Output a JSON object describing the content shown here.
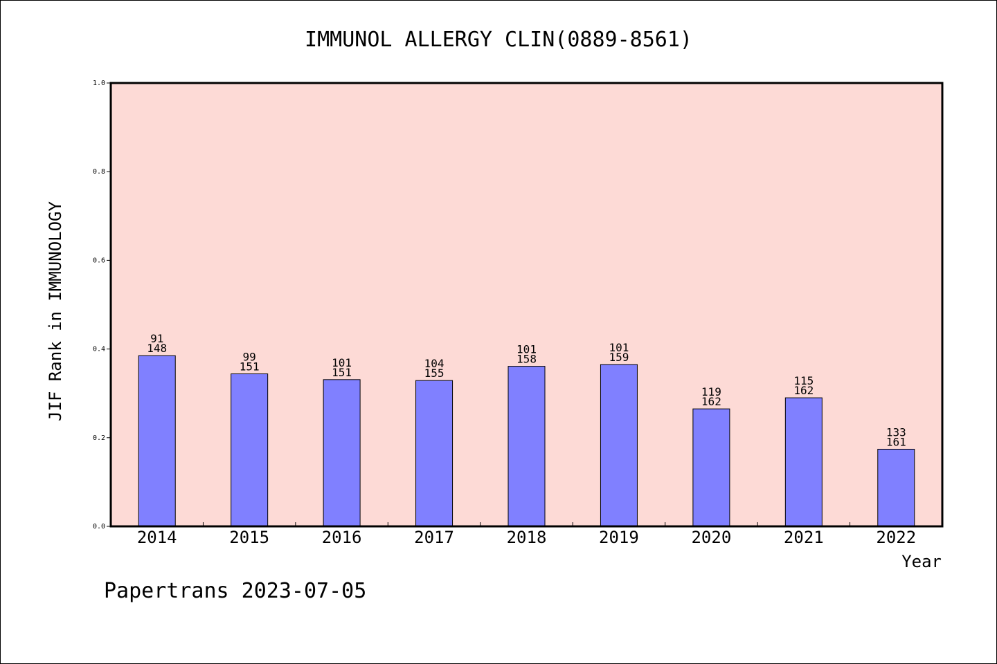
{
  "chart_data": {
    "type": "bar",
    "title": "IMMUNOL ALLERGY CLIN(0889-8561)",
    "xlabel": "Year",
    "ylabel": "JIF Rank in IMMUNOLOGY",
    "ylim": [
      0,
      1.0
    ],
    "yticks": [
      "0.0",
      "0.2",
      "0.4",
      "0.6",
      "0.8",
      "1.0"
    ],
    "categories": [
      "2014",
      "2015",
      "2016",
      "2017",
      "2018",
      "2019",
      "2020",
      "2021",
      "2022"
    ],
    "values": [
      0.385,
      0.344,
      0.331,
      0.329,
      0.361,
      0.365,
      0.265,
      0.29,
      0.174
    ],
    "rank": [
      "91",
      "99",
      "101",
      "104",
      "101",
      "101",
      "119",
      "115",
      "133"
    ],
    "total": [
      "148",
      "151",
      "151",
      "155",
      "158",
      "159",
      "162",
      "162",
      "161"
    ],
    "grid": false,
    "colors": {
      "plot_bg": "#fddad6",
      "bar": "#8080ff",
      "bar_edge": "#000000"
    }
  },
  "footer": "Papertrans 2023-07-05"
}
